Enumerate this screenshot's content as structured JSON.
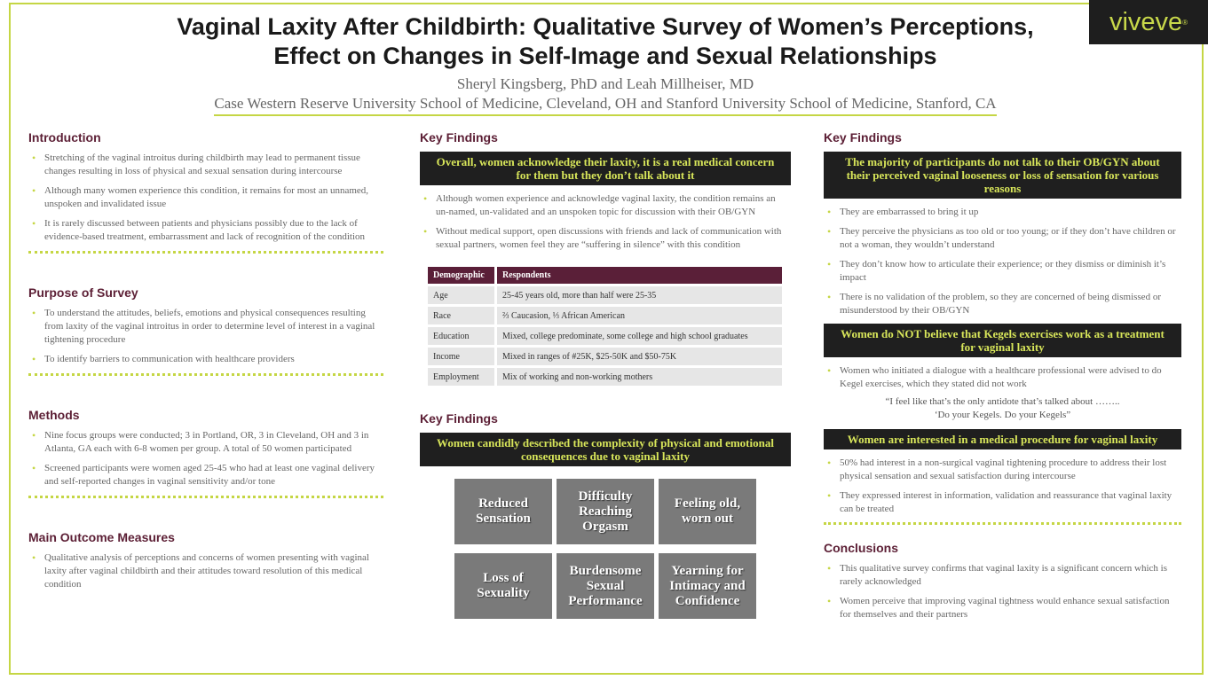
{
  "header": {
    "title_line1": "Vaginal Laxity After Childbirth: Qualitative Survey of Women’s Perceptions,",
    "title_line2": "Effect on Changes in Self-Image and Sexual Relationships",
    "authors": "Sheryl Kingsberg, PhD and Leah Millheiser, MD",
    "affiliation": "Case Western Reserve University School of Medicine, Cleveland, OH and Stanford University School of Medicine, Stanford, CA",
    "logo": "viveve",
    "logo_mark": "®"
  },
  "colors": {
    "accent_green": "#c5d644",
    "heading_maroon": "#5c1f35",
    "banner_bg": "#1f1f1f",
    "banner_text": "#d8e65a",
    "tile_grey": "#7a7a7a"
  },
  "introduction": {
    "heading": "Introduction",
    "bullets": [
      "Stretching of the vaginal introitus during childbirth may lead to permanent tissue changes resulting in loss of physical and sexual sensation during intercourse",
      "Although many women experience this condition, it remains for most an unnamed, unspoken and invalidated issue",
      "It is rarely discussed between patients and physicians possibly due to the lack of evidence-based treatment, embarrassment and lack of recognition of the condition"
    ]
  },
  "purpose": {
    "heading": "Purpose of Survey",
    "bullets": [
      "To understand the attitudes, beliefs, emotions and physical consequences resulting from laxity of the vaginal introitus in order to determine level of interest in a vaginal tightening procedure",
      "To identify barriers to communication with healthcare providers"
    ]
  },
  "methods": {
    "heading": "Methods",
    "bullets": [
      "Nine focus groups were conducted; 3 in Portland, OR, 3 in Cleveland, OH and 3 in Atlanta, GA each with 6-8 women per group. A total of 50 women participated",
      "Screened participants were women aged 25-45 who had at least one vaginal delivery and self-reported changes in vaginal sensitivity and/or tone"
    ]
  },
  "outcomes": {
    "heading": "Main Outcome Measures",
    "bullets": [
      "Qualitative analysis of perceptions and concerns of women presenting with vaginal laxity after vaginal childbirth and their attitudes toward resolution of this medical condition"
    ]
  },
  "findings1": {
    "heading": "Key Findings",
    "banner": "Overall, women acknowledge their laxity, it is a real medical concern for them but they don’t talk about it",
    "bullets": [
      "Although women experience and acknowledge vaginal laxity, the condition remains an un-named, un-validated and an unspoken topic for discussion with their OB/GYN",
      "Without medical support, open discussions with friends and lack of communication with sexual partners, women feel they are “suffering in silence” with this condition"
    ]
  },
  "demographics": {
    "headers": [
      "Demographic",
      "Respondents"
    ],
    "rows": [
      [
        "Age",
        "25-45 years old, more than half were 25-35"
      ],
      [
        "Race",
        "⅔ Caucasion, ⅓ African American"
      ],
      [
        "Education",
        "Mixed, college predominate, some college and high school graduates"
      ],
      [
        "Income",
        "Mixed in ranges of #25K, $25-50K and $50-75K"
      ],
      [
        "Employment",
        "Mix of working and non-working mothers"
      ]
    ]
  },
  "findings2": {
    "heading": "Key Findings",
    "banner": "Women candidly described the complexity of physical and emotional consequences due to vaginal laxity",
    "tiles": [
      "Reduced Sensation",
      "Difficulty Reaching Orgasm",
      "Feeling old, worn out",
      "Loss of Sexuality",
      "Burdensome Sexual Performance",
      "Yearning for Intimacy and Confidence"
    ]
  },
  "findings3": {
    "heading": "Key Findings",
    "banner1": "The majority of participants do not talk to their OB/GYN about their perceived vaginal looseness or loss of sensation for various reasons",
    "bullets1": [
      "They are embarrassed to bring it up",
      "They perceive the physicians as too old or too young; or if they don’t have children or not a woman, they wouldn’t understand",
      "They don’t know how to articulate their experience; or they dismiss or diminish it’s impact",
      "There is no validation of the problem, so they are concerned of being dismissed or misunderstood by their OB/GYN"
    ],
    "banner2": "Women do NOT believe that Kegels exercises work as a treatment for vaginal laxity",
    "bullets2": [
      "Women who initiated a dialogue with a healthcare professional were advised to do Kegel exercises, which they stated did not work"
    ],
    "quote_line1": "“I feel like that’s the only antidote that’s talked about ……..",
    "quote_line2": "‘Do your Kegels. Do your Kegels”",
    "banner3": "Women are interested in a medical procedure for vaginal laxity",
    "bullets3": [
      "50% had interest in a non-surgical vaginal tightening procedure to address their lost physical sensation and sexual satisfaction during intercourse",
      "They expressed interest in information, validation and reassurance that vaginal laxity can be treated"
    ]
  },
  "conclusions": {
    "heading": "Conclusions",
    "bullets": [
      "This qualitative survey confirms that vaginal laxity is a significant concern which is rarely acknowledged",
      "Women perceive that improving vaginal tightness would enhance sexual satisfaction for themselves and their partners"
    ]
  }
}
